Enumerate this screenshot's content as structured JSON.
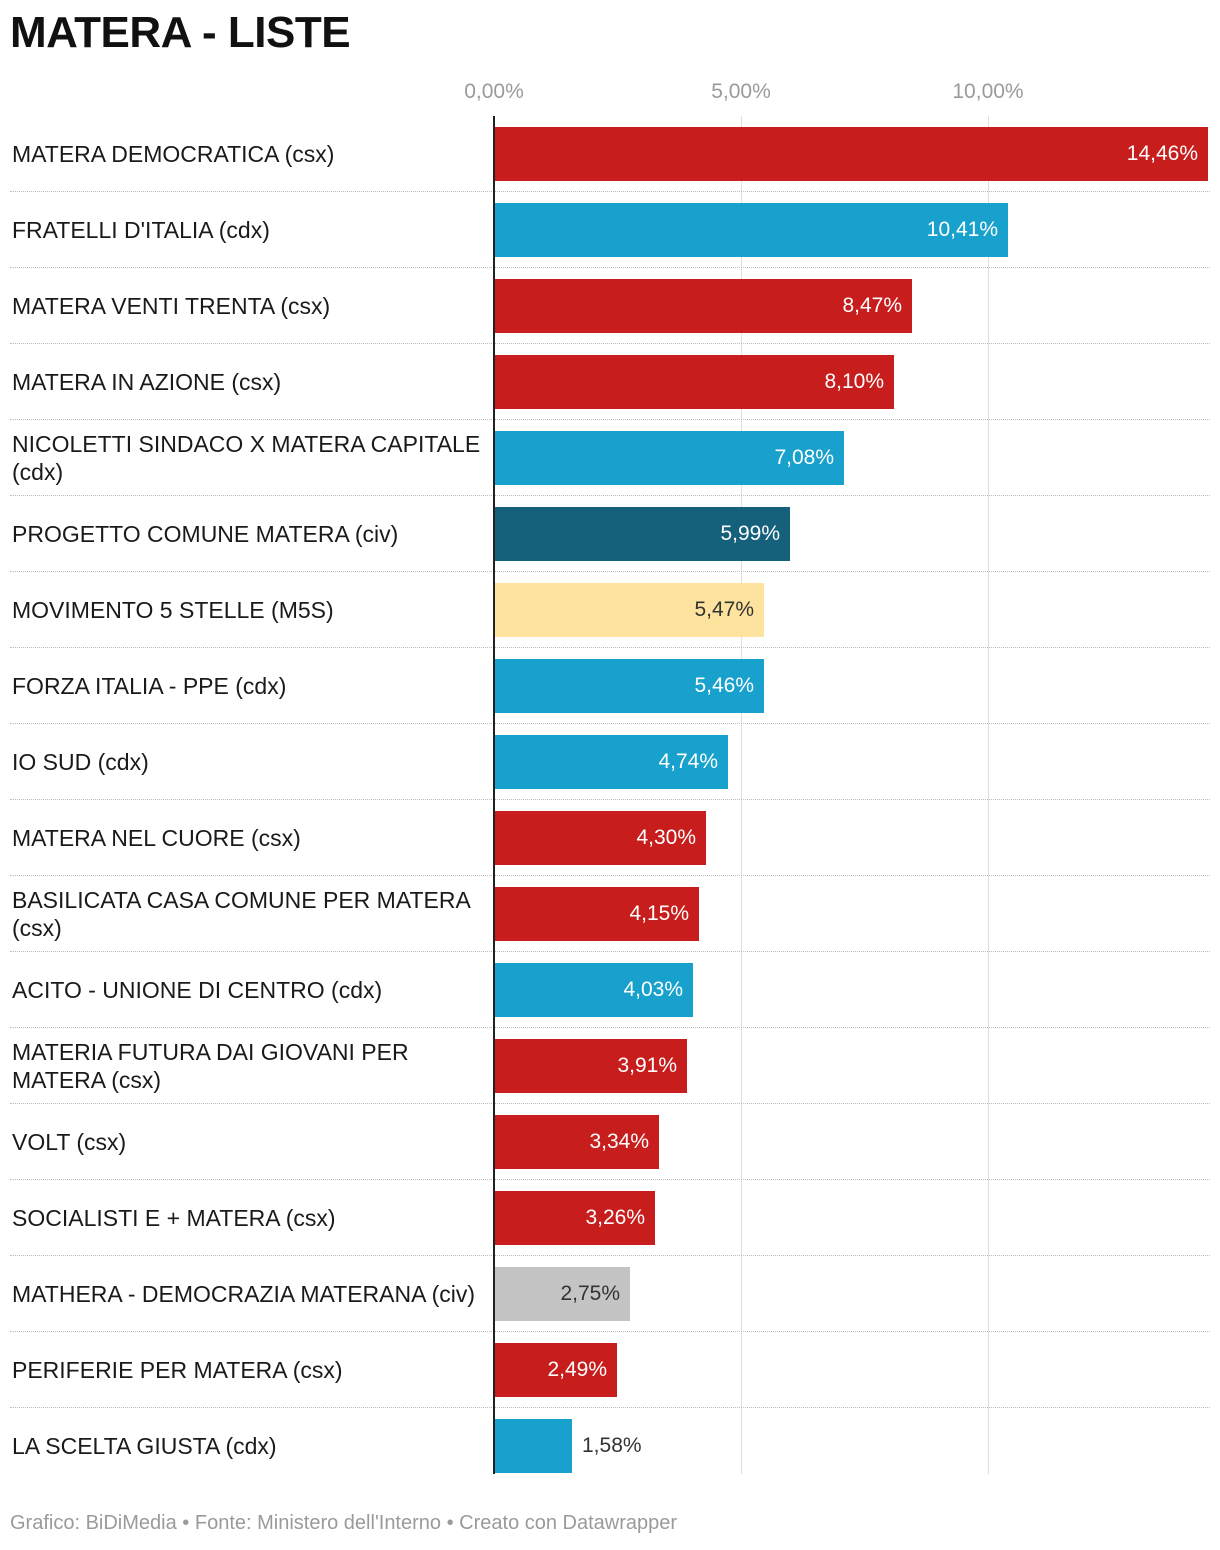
{
  "title": "MATERA - LISTE",
  "footer": {
    "credit": "Grafico: BiDiMedia",
    "source": "Fonte: Ministero dell'Interno",
    "tool": "Creato con Datawrapper",
    "separator": "•"
  },
  "chart_data": {
    "type": "bar",
    "orientation": "horizontal",
    "title": "MATERA - LISTE",
    "xlabel": "",
    "ylabel": "",
    "xlim": [
      0,
      14.46
    ],
    "x_ticks": [
      0,
      5,
      10
    ],
    "x_tick_labels": [
      "0,00%",
      "5,00%",
      "10,00%"
    ],
    "grid": true,
    "categories": [
      "MATERA DEMOCRATICA (csx)",
      "FRATELLI D'ITALIA (cdx)",
      "MATERA VENTI TRENTA (csx)",
      "MATERA IN AZIONE (csx)",
      "NICOLETTI SINDACO X MATERA CAPITALE (cdx)",
      "PROGETTO COMUNE MATERA (civ)",
      "MOVIMENTO 5 STELLE (M5S)",
      "FORZA ITALIA - PPE (cdx)",
      "IO SUD (cdx)",
      "MATERA NEL CUORE (csx)",
      "BASILICATA CASA COMUNE PER MATERA (csx)",
      "ACITO - UNIONE DI CENTRO (cdx)",
      "MATERIA FUTURA DAI GIOVANI PER MATERA (csx)",
      "VOLT (csx)",
      "SOCIALISTI E + MATERA (csx)",
      "MATHERA - DEMOCRAZIA MATERANA (civ)",
      "PERIFERIE PER MATERA (csx)",
      "LA SCELTA GIUSTA (cdx)"
    ],
    "values": [
      14.46,
      10.41,
      8.47,
      8.1,
      7.08,
      5.99,
      5.47,
      5.46,
      4.74,
      4.3,
      4.15,
      4.03,
      3.91,
      3.34,
      3.26,
      2.75,
      2.49,
      1.58
    ],
    "value_labels": [
      "14,46%",
      "10,41%",
      "8,47%",
      "8,10%",
      "7,08%",
      "5,99%",
      "5,47%",
      "5,46%",
      "4,74%",
      "4,30%",
      "4,15%",
      "4,03%",
      "3,91%",
      "3,34%",
      "3,26%",
      "2,75%",
      "2,49%",
      "1,58%"
    ],
    "colors": [
      "#c71e1d",
      "#18a1cd",
      "#c71e1d",
      "#c71e1d",
      "#18a1cd",
      "#15607a",
      "#fde39e",
      "#18a1cd",
      "#18a1cd",
      "#c71e1d",
      "#c71e1d",
      "#18a1cd",
      "#c71e1d",
      "#c71e1d",
      "#c71e1d",
      "#c4c4c4",
      "#c71e1d",
      "#18a1cd"
    ],
    "label_colors": [
      "#ffffff",
      "#ffffff",
      "#ffffff",
      "#ffffff",
      "#ffffff",
      "#ffffff",
      "#333333",
      "#ffffff",
      "#ffffff",
      "#ffffff",
      "#ffffff",
      "#ffffff",
      "#ffffff",
      "#ffffff",
      "#ffffff",
      "#333333",
      "#ffffff",
      "#333333"
    ]
  }
}
